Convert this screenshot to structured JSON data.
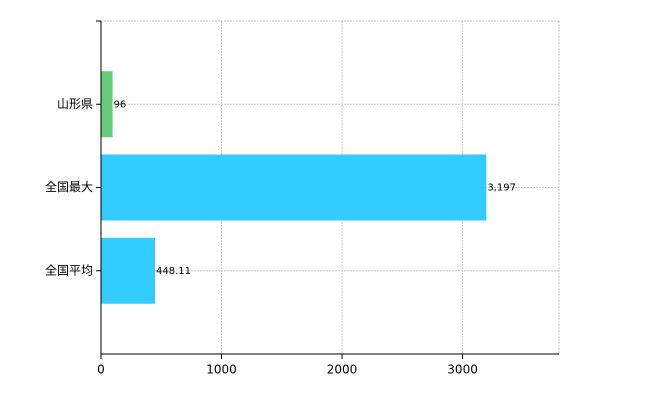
{
  "chart_data": {
    "type": "barh",
    "categories": [
      "山形県",
      "全国最大",
      "全国平均"
    ],
    "values": [
      96,
      3197,
      448.11
    ],
    "value_labels": [
      "96",
      "3,197",
      "448.11"
    ],
    "colors": [
      "#66cc77",
      "#33ccff",
      "#33ccff"
    ],
    "xlim": [
      0,
      3800
    ],
    "xticks": [
      0,
      1000,
      2000,
      3000
    ],
    "grid": true
  }
}
